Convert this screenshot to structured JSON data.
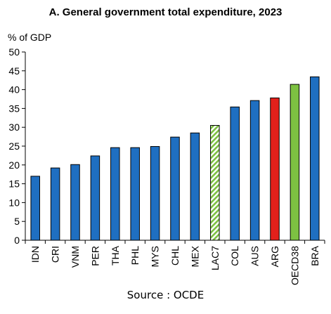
{
  "chart_data": {
    "type": "bar",
    "title": "A. General government total expenditure, 2023",
    "ylabel": "% of GDP",
    "xlabel": "",
    "ylim": [
      0,
      50
    ],
    "yticks": [
      0,
      5,
      10,
      15,
      20,
      25,
      30,
      35,
      40,
      45,
      50
    ],
    "grid": false,
    "categories": [
      "IDN",
      "CRI",
      "VNM",
      "PER",
      "THA",
      "PHL",
      "MYS",
      "CHL",
      "MEX",
      "LAC7",
      "COL",
      "AUS",
      "ARG",
      "OECD38",
      "BRA"
    ],
    "values": [
      17.0,
      19.2,
      20.1,
      22.4,
      24.6,
      24.6,
      24.9,
      27.4,
      28.5,
      30.5,
      35.4,
      37.1,
      37.8,
      41.4,
      43.4
    ],
    "bar_styles": [
      "solid",
      "solid",
      "solid",
      "solid",
      "solid",
      "solid",
      "solid",
      "solid",
      "solid",
      "hatched",
      "solid",
      "solid",
      "solid",
      "solid",
      "solid"
    ],
    "colors": {
      "default": "#1f6fc1",
      "ARG": "#e3201b",
      "OECD38": "#7dc142",
      "LAC7": "#7dc142",
      "outline": "#000000"
    }
  },
  "source_note": "Source : OCDE"
}
